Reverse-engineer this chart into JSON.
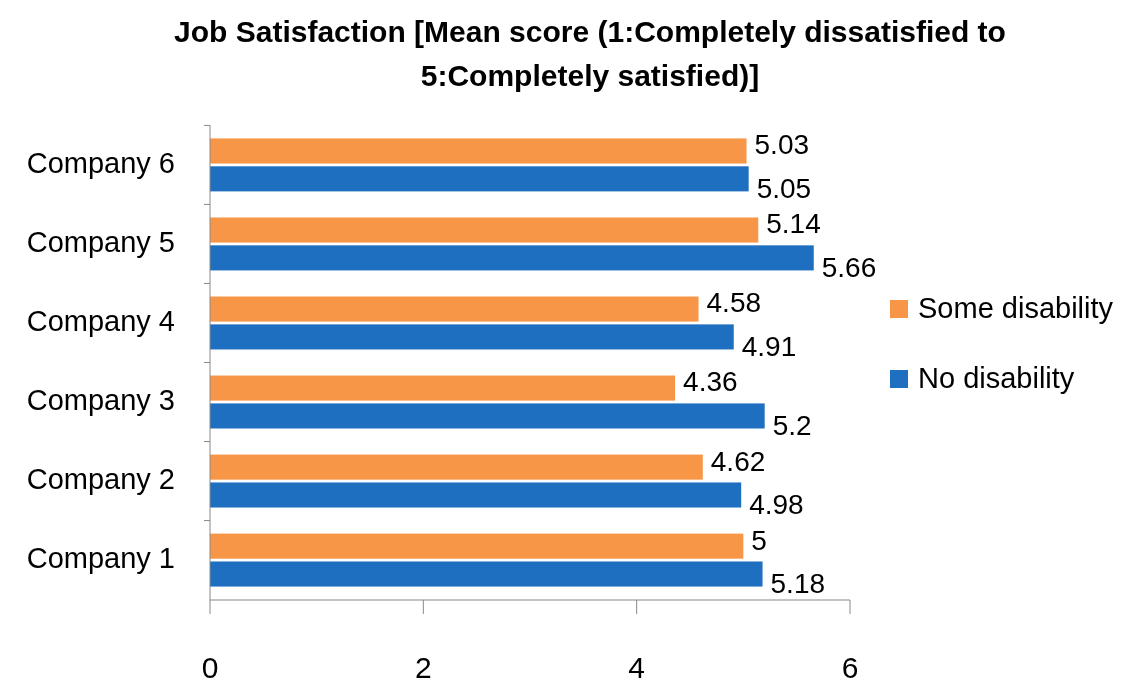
{
  "chart_data": {
    "type": "bar",
    "orientation": "horizontal",
    "title": "Job Satisfaction [Mean score (1:Completely dissatisfied to 5:Completely satisfied)]",
    "categories": [
      "Company 6",
      "Company 5",
      "Company 4",
      "Company 3",
      "Company 2",
      "Company 1"
    ],
    "series": [
      {
        "name": "Some disability",
        "color": "#f79646",
        "values": [
          5.03,
          5.14,
          4.58,
          4.36,
          4.62,
          5
        ]
      },
      {
        "name": "No disability",
        "color": "#1f6fc0",
        "values": [
          5.05,
          5.66,
          4.91,
          5.2,
          4.98,
          5.18
        ]
      }
    ],
    "xlim": [
      0,
      6
    ],
    "xticks": [
      0,
      2,
      4,
      6
    ],
    "data_labels": true,
    "legend": "right",
    "grid": false
  }
}
